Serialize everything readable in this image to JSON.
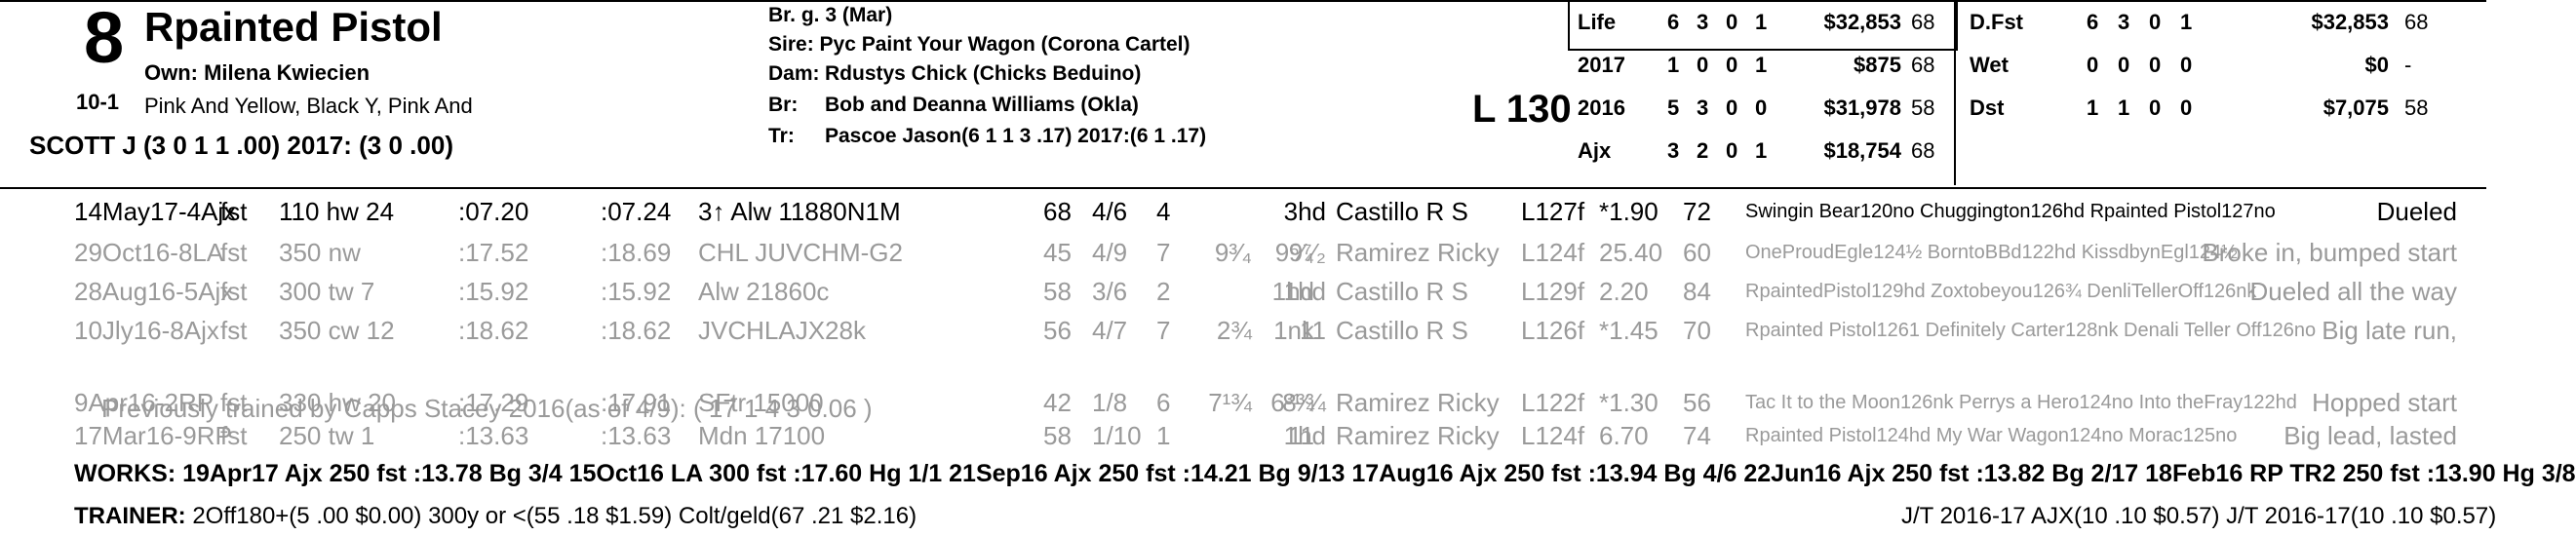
{
  "header": {
    "post_position": "8",
    "horse_name": "Rpainted Pistol",
    "owner": "Own: Milena Kwiecien",
    "odds": "10-1",
    "silks": "Pink And Yellow, Black Y, Pink And",
    "jockey": "SCOTT J (3 0 1 1 .00) 2017: (3 0 .00)"
  },
  "breeding": {
    "description": "Br. g. 3 (Mar)",
    "sire": "Sire: Pyc Paint Your Wagon (Corona Cartel)",
    "dam_label": "Dam:",
    "dam": "Rdustys Chick (Chicks Beduino)",
    "breeder_label": "Br:",
    "breeder": "Bob and Deanna Williams (Okla)",
    "trainer_label": "Tr:",
    "trainer": "Pascoe Jason(6 1 1 3 .17)  2017:(6 1 .17)"
  },
  "weight": "L 130",
  "stats_left": [
    {
      "label": "Life",
      "st": "6",
      "w": "3",
      "p": "0",
      "s": "1",
      "earnings": "$32,853",
      "speed": "68"
    },
    {
      "label": "2017",
      "st": "1",
      "w": "0",
      "p": "0",
      "s": "1",
      "earnings": "$875",
      "speed": "68"
    },
    {
      "label": "2016",
      "st": "5",
      "w": "3",
      "p": "0",
      "s": "0",
      "earnings": "$31,978",
      "speed": "58"
    },
    {
      "label": "Ajx",
      "st": "3",
      "w": "2",
      "p": "0",
      "s": "1",
      "earnings": "$18,754",
      "speed": "68"
    }
  ],
  "stats_right": [
    {
      "label": "D.Fst",
      "st": "6",
      "w": "3",
      "p": "0",
      "s": "1",
      "earnings": "$32,853",
      "speed": "68"
    },
    {
      "label": "Wet",
      "st": "0",
      "w": "0",
      "p": "0",
      "s": "0",
      "earnings": "$0",
      "speed": "-"
    },
    {
      "label": "Dst",
      "st": "1",
      "w": "1",
      "p": "0",
      "s": "0",
      "earnings": "$7,075",
      "speed": "58"
    }
  ],
  "past_performances": [
    {
      "date": "14May17-4Ajx",
      "trk": "fst",
      "dist": "110 hw 24",
      "t1": ":07.20",
      "t2": ":07.24",
      "race": "3↑ Alw 11880N1M",
      "spd": "68",
      "pp": "4/6",
      "st": "4",
      "c1": "",
      "c2": "",
      "fin": "3hd",
      "jockey": "Castillo R S",
      "wt": "L127f",
      "odds": "*1.90",
      "sr": "72",
      "top": "Swingin Bear120no Chuggington126hd Rpainted Pistol127no",
      "comment": "Dueled"
    },
    {
      "date": "29Oct16-8LA",
      "trk": "fst",
      "dist": "350 nw",
      "t1": ":17.52",
      "t2": ":18.69",
      "race": "CHL JUVCHM-G2",
      "spd": "45",
      "pp": "4/9",
      "st": "7",
      "c1": "9³⁄₄",
      "c2": "9⁵⁄₄",
      "fin": "9⁷⁄₂",
      "jockey": "Ramirez Ricky",
      "wt": "L124f",
      "odds": "25.40",
      "sr": "60",
      "top": "OneProudEgle124½ BorntoBBd122hd KissdbynEgl124½",
      "comment": "Broke in, bumped start"
    },
    {
      "date": "28Aug16-5Ajx",
      "trk": "fst",
      "dist": "300 tw 7",
      "t1": ":15.92",
      "t2": ":15.92",
      "race": "Alw 21860c",
      "spd": "58",
      "pp": "3/6",
      "st": "2",
      "c1": "",
      "c2": "1hd",
      "fin": "1hd",
      "jockey": "Castillo R S",
      "wt": "L129f",
      "odds": "2.20",
      "sr": "84",
      "top": "RpaintedPistol129hd Zoxtobeyou126¾ DenliTellerOff126nk",
      "comment": "Dueled all the way"
    },
    {
      "date": "10Jly16-8Ajx",
      "trk": "fst",
      "dist": "350 cw 12",
      "t1": ":18.62",
      "t2": ":18.62",
      "race": "JVCHLAJX28k",
      "spd": "56",
      "pp": "4/7",
      "st": "7",
      "c1": "2¾",
      "c2": "1nk",
      "fin": "11",
      "jockey": "Castillo R S",
      "wt": "L126f",
      "odds": "*1.45",
      "sr": "70",
      "top": "Rpainted Pistol1261 Definitely Carter128nk Denali Teller Off126no",
      "comment": "Big late run,"
    },
    {
      "date": "9Apr16-2RP",
      "trk": "fst",
      "dist": "330 hw 20",
      "t1": ":17.29",
      "t2": ":17.91",
      "race": "SFtr 15000",
      "spd": "42",
      "pp": "1/8",
      "st": "6",
      "c1": "7¹¾",
      "c2": "6³¼",
      "fin": "8³¾",
      "jockey": "Ramirez Ricky",
      "wt": "L122f",
      "odds": "*1.30",
      "sr": "56",
      "top": "Tac It to the Moon126nk Perrys a Hero124no Into theFray122hd",
      "comment": "Hopped start"
    },
    {
      "date": "17Mar16-9RP",
      "trk": "fst",
      "dist": "250 tw 1",
      "t1": ":13.63",
      "t2": ":13.63",
      "race": "Mdn 17100",
      "spd": "58",
      "pp": "1/10",
      "st": "1",
      "c1": "",
      "c2": "11",
      "fin": "1hd",
      "jockey": "Ramirez Ricky",
      "wt": "L124f",
      "odds": "6.70",
      "sr": "74",
      "top": "Rpainted Pistol124hd My War Wagon124no Morac125no",
      "comment": "Big lead, lasted"
    }
  ],
  "previously_trained": "Previously trained by Capps Stacey 2016(as of 4/9): ( 17 1 4 3 0.06 )",
  "works": "WORKS:   19Apr17 Ajx 250 fst :13.78 Bg 3/4   15Oct16 LA 300 fst :17.60 Hg 1/1   21Sep16 Ajx 250 fst :14.21 Bg 9/13   17Aug16 Ajx 250 fst :13.94 Bg 4/6   22Jun16 Ajx 250 fst :13.82 Bg 2/17   18Feb16 RP TR2 250 fst :13.90 Hg 3/8",
  "trainer_stats": {
    "label": "TRAINER:",
    "text": "2Off180+(5 .00 $0.00) 300y or <(55 .18 $1.59) Colt/geld(67 .21 $2.16)",
    "jt": "J/T 2016-17 AJX(10 .10 $0.57)  J/T 2016-17(10 .10 $0.57)"
  }
}
